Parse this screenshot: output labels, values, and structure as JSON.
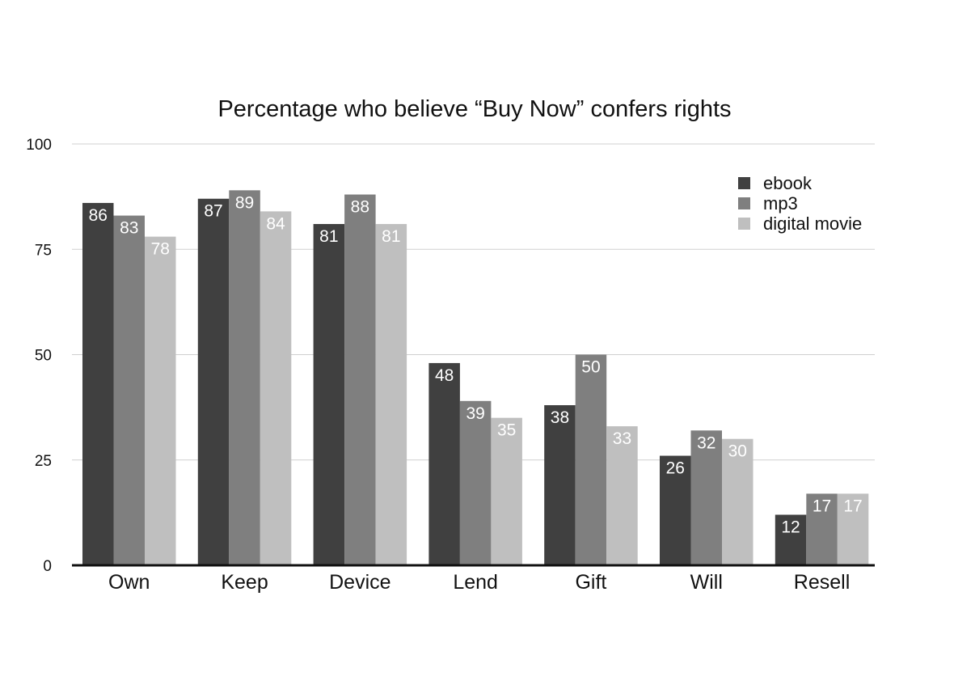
{
  "chart_data": {
    "type": "bar",
    "title": "Percentage who believe “Buy Now” confers rights",
    "xlabel": "",
    "ylabel": "",
    "ylim": [
      0,
      100
    ],
    "yticks": [
      0,
      25,
      50,
      75,
      100
    ],
    "grid": true,
    "legend_position": "top-right",
    "categories": [
      "Own",
      "Keep",
      "Device",
      "Lend",
      "Gift",
      "Will",
      "Resell"
    ],
    "series": [
      {
        "name": "ebook",
        "color": "#404040",
        "label_color": "#ffffff",
        "values": [
          86,
          87,
          81,
          48,
          38,
          26,
          12
        ]
      },
      {
        "name": "mp3",
        "color": "#7f7f7f",
        "label_color": "#ffffff",
        "values": [
          83,
          89,
          88,
          39,
          50,
          32,
          17
        ]
      },
      {
        "name": "digital movie",
        "color": "#bfbfbf",
        "label_color": "#ffffff",
        "values": [
          78,
          84,
          81,
          35,
          33,
          30,
          17
        ]
      }
    ]
  }
}
